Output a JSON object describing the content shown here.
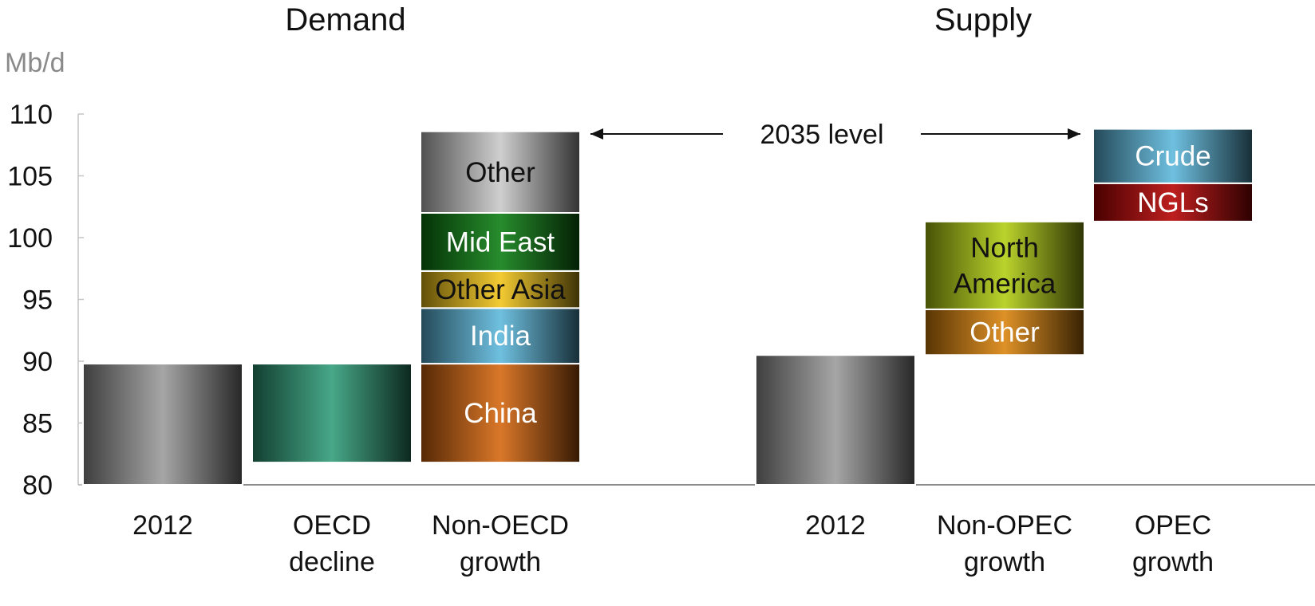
{
  "chart_data": {
    "type": "bar",
    "subtype": "waterfall",
    "unit_label": "Mb/d",
    "ylim": [
      80,
      110
    ],
    "yticks": [
      80,
      85,
      90,
      95,
      100,
      105,
      110
    ],
    "grid": false,
    "annotation": "2035 level",
    "panels": [
      {
        "title": "Demand",
        "bars": [
          {
            "label": "2012",
            "segments": [
              {
                "label": "",
                "from": 80,
                "to": 89.8,
                "color": "#9a9a9a"
              }
            ]
          },
          {
            "label": "OECD decline",
            "segments": [
              {
                "label": "",
                "from": 81.8,
                "to": 89.8,
                "color": "#2e9c78"
              }
            ]
          },
          {
            "label": "Non-OECD growth",
            "segments": [
              {
                "label": "China",
                "from": 81.8,
                "to": 89.8,
                "color": "#d4650c"
              },
              {
                "label": "India",
                "from": 89.8,
                "to": 94.3,
                "color": "#5bb7dc"
              },
              {
                "label": "Other Asia",
                "from": 94.3,
                "to": 97.3,
                "color": "#f1c417"
              },
              {
                "label": "Mid East",
                "from": 97.3,
                "to": 102.0,
                "color": "#0a7c10"
              },
              {
                "label": "Other",
                "from": 102.0,
                "to": 108.6,
                "color": "#c8c8c8"
              }
            ]
          }
        ]
      },
      {
        "title": "Supply",
        "bars": [
          {
            "label": "2012",
            "segments": [
              {
                "label": "",
                "from": 80,
                "to": 90.5,
                "color": "#9a9a9a"
              }
            ]
          },
          {
            "label": "Non-OPEC growth",
            "segments": [
              {
                "label": "Other",
                "from": 90.5,
                "to": 94.2,
                "color": "#d9820a"
              },
              {
                "label": "North America",
                "from": 94.2,
                "to": 101.3,
                "color": "#b2cd0f"
              }
            ]
          },
          {
            "label": "OPEC growth",
            "segments": [
              {
                "label": "NGLs",
                "from": 101.3,
                "to": 104.4,
                "color": "#b50000"
              },
              {
                "label": "Crude",
                "from": 104.4,
                "to": 108.8,
                "color": "#5bb7dc"
              }
            ]
          }
        ]
      }
    ]
  }
}
